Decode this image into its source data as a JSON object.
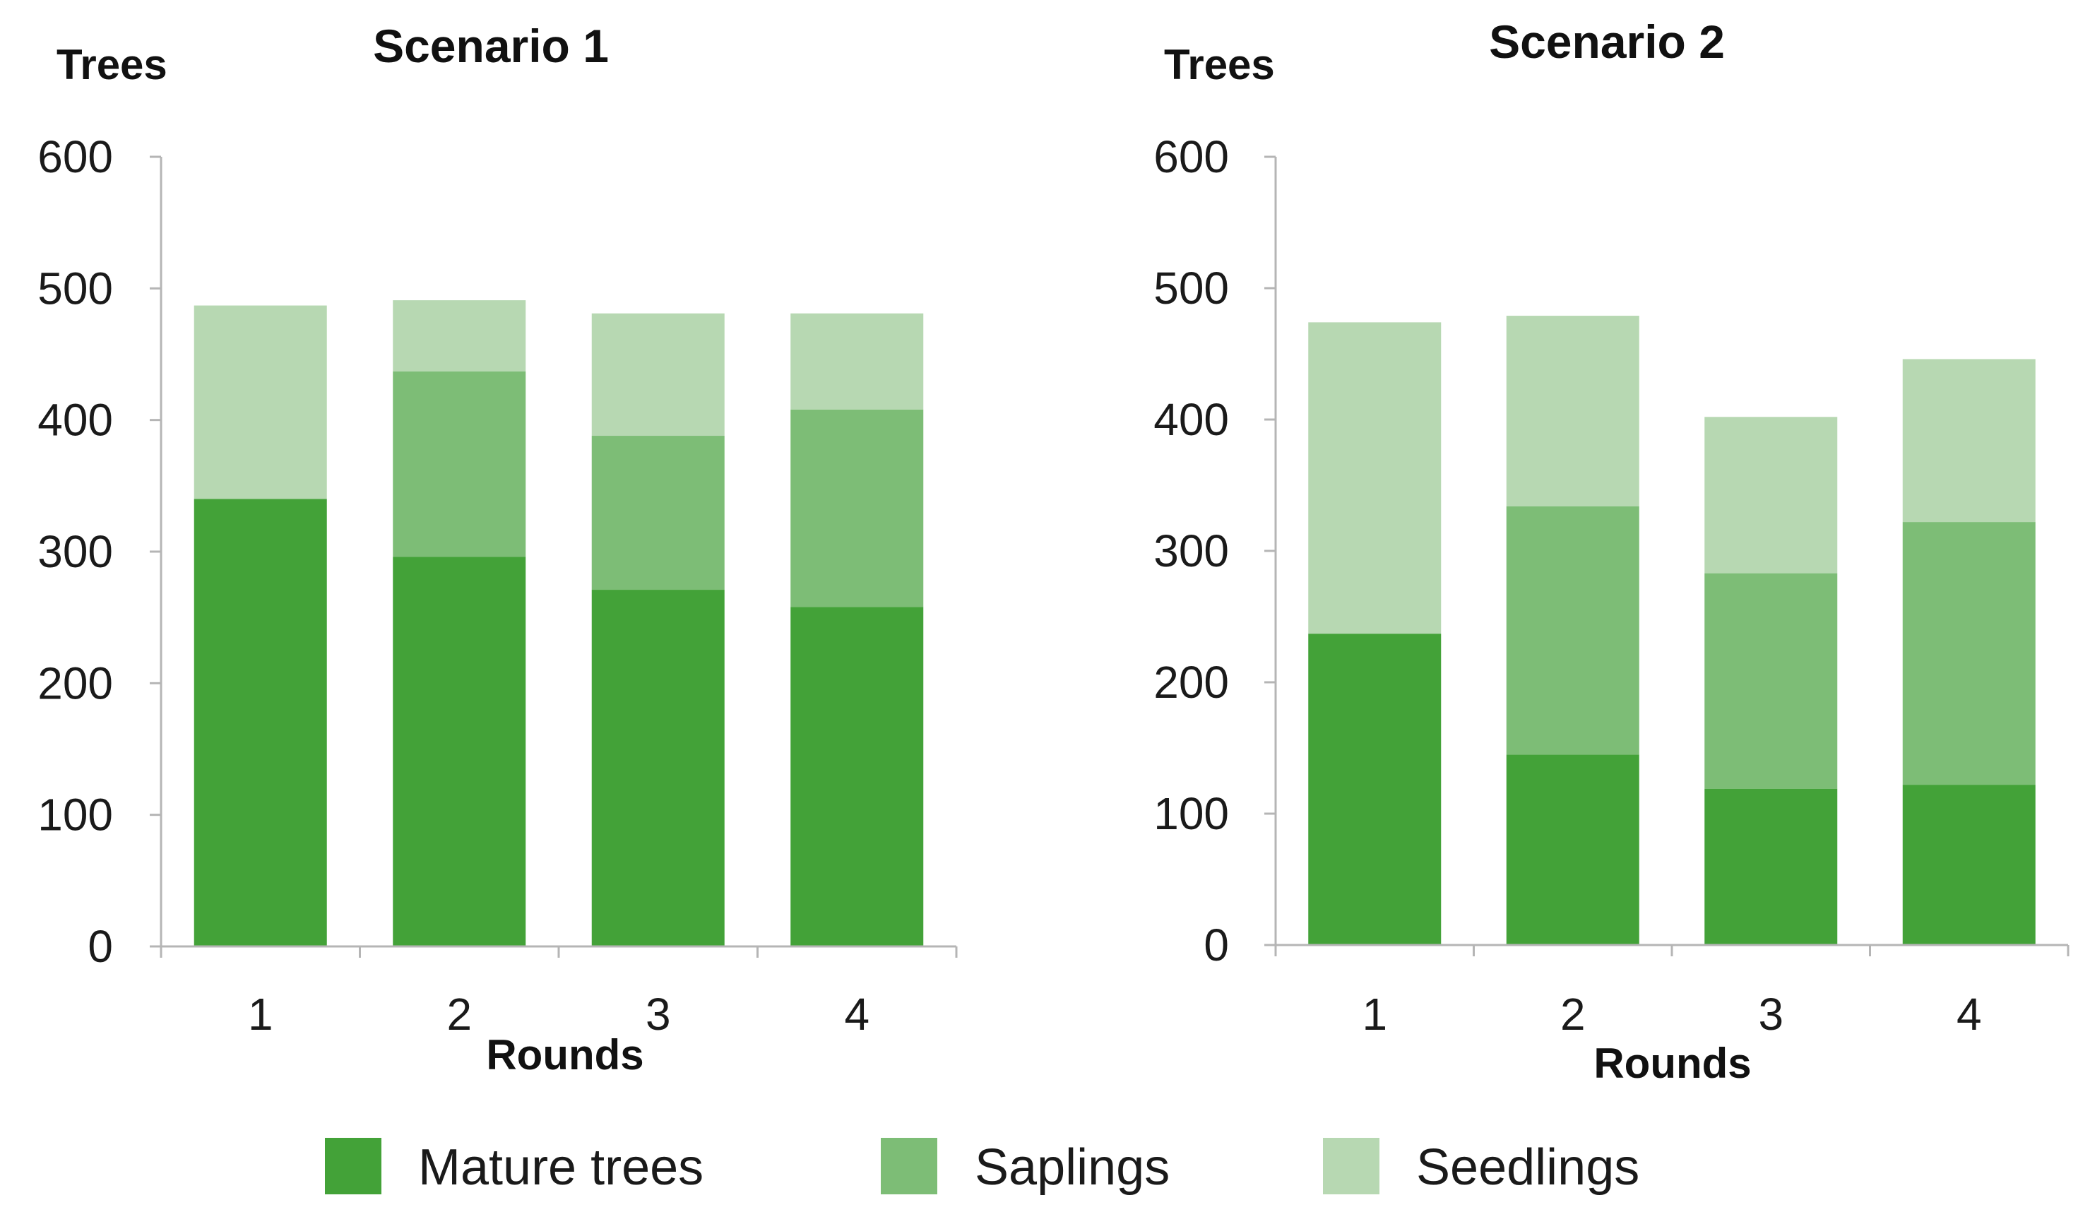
{
  "chart_data": [
    {
      "type": "bar",
      "stacked": true,
      "title": "Scenario 1",
      "ylabel": "Trees",
      "xlabel": "Rounds",
      "categories": [
        "1",
        "2",
        "3",
        "4"
      ],
      "ylim": [
        0,
        600
      ],
      "yticks": [
        "0",
        "100",
        "200",
        "300",
        "400",
        "500",
        "600"
      ],
      "grid": false,
      "series": [
        {
          "name": "Mature trees",
          "values": [
            340,
            296,
            271,
            258
          ]
        },
        {
          "name": "Saplings",
          "values": [
            0,
            141,
            117,
            150
          ]
        },
        {
          "name": "Seedlings",
          "values": [
            147,
            54,
            93,
            73
          ]
        }
      ]
    },
    {
      "type": "bar",
      "stacked": true,
      "title": "Scenario 2",
      "ylabel": "Trees",
      "xlabel": "Rounds",
      "categories": [
        "1",
        "2",
        "3",
        "4"
      ],
      "ylim": [
        0,
        600
      ],
      "yticks": [
        "0",
        "100",
        "200",
        "300",
        "400",
        "500",
        "600"
      ],
      "grid": false,
      "series": [
        {
          "name": "Mature trees",
          "values": [
            237,
            145,
            119,
            122
          ]
        },
        {
          "name": "Saplings",
          "values": [
            0,
            189,
            164,
            200
          ]
        },
        {
          "name": "Seedlings",
          "values": [
            237,
            145,
            119,
            124
          ]
        }
      ]
    }
  ],
  "legend": {
    "position": "bottom",
    "items": [
      {
        "label": "Mature trees",
        "color": "#43a238"
      },
      {
        "label": "Saplings",
        "color": "#7dbd76"
      },
      {
        "label": "Seedlings",
        "color": "#b7d8b2"
      }
    ]
  },
  "colors": {
    "Mature trees": "#43a238",
    "Saplings": "#7dbd76",
    "Seedlings": "#b7d8b2",
    "axis": "#b5b5b5"
  }
}
